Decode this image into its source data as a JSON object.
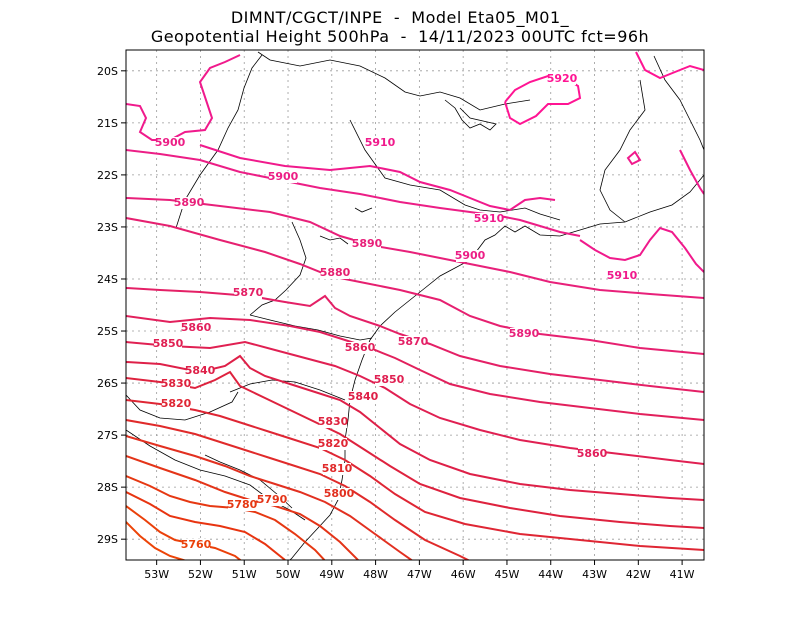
{
  "title": {
    "line1": "DIMNT/CGCT/INPE  -  Model Eta05_M01_",
    "line2": "Geopotential Height 500hPa  -  14/11/2023 00UTC fct=96h"
  },
  "map": {
    "lon_range": [
      -53.7,
      -40.5
    ],
    "lat_range": [
      -29.4,
      -19.6
    ],
    "lon_ticks": [
      "53W",
      "52W",
      "51W",
      "50W",
      "49W",
      "48W",
      "47W",
      "46W",
      "45W",
      "44W",
      "43W",
      "42W",
      "41W"
    ],
    "lat_ticks": [
      "20S",
      "21S",
      "22S",
      "23S",
      "24S",
      "25S",
      "26S",
      "27S",
      "28S",
      "29S"
    ],
    "grid": true,
    "coastline_color": "#000000"
  },
  "contours": [
    {
      "value": "5920",
      "color": "#ff1493"
    },
    {
      "value": "5910",
      "color": "#f01a8c"
    },
    {
      "value": "5900",
      "color": "#ec1e86"
    },
    {
      "value": "5890",
      "color": "#e8207a"
    },
    {
      "value": "5880",
      "color": "#e62070"
    },
    {
      "value": "5870",
      "color": "#e42066"
    },
    {
      "value": "5860",
      "color": "#e2205c"
    },
    {
      "value": "5850",
      "color": "#e02052"
    },
    {
      "value": "5840",
      "color": "#de2048"
    },
    {
      "value": "5830",
      "color": "#de223e"
    },
    {
      "value": "5820",
      "color": "#df2634"
    },
    {
      "value": "5810",
      "color": "#e02a2a"
    },
    {
      "value": "5800",
      "color": "#e23020"
    },
    {
      "value": "5790",
      "color": "#e43418"
    },
    {
      "value": "5780",
      "color": "#e63812"
    },
    {
      "value": "5760",
      "color": "#ea400a"
    }
  ],
  "labels": [
    {
      "text": "5920",
      "color": "#ff1493"
    },
    {
      "text": "5910",
      "color": "#f01a8c"
    },
    {
      "text": "5910",
      "color": "#f01a8c"
    },
    {
      "text": "5910",
      "color": "#f01a8c"
    },
    {
      "text": "5900",
      "color": "#ec1e86"
    },
    {
      "text": "5900",
      "color": "#ec1e86"
    },
    {
      "text": "5900",
      "color": "#ec1e86"
    },
    {
      "text": "5890",
      "color": "#e8207a"
    },
    {
      "text": "5890",
      "color": "#e8207a"
    },
    {
      "text": "5890",
      "color": "#e8207a"
    },
    {
      "text": "5880",
      "color": "#e62070"
    },
    {
      "text": "5870",
      "color": "#e42066"
    },
    {
      "text": "5870",
      "color": "#e42066"
    },
    {
      "text": "5860",
      "color": "#e2205c"
    },
    {
      "text": "5860",
      "color": "#e2205c"
    },
    {
      "text": "5860",
      "color": "#e2205c"
    },
    {
      "text": "5850",
      "color": "#e02052"
    },
    {
      "text": "5850",
      "color": "#e02052"
    },
    {
      "text": "5840",
      "color": "#de2048"
    },
    {
      "text": "5840",
      "color": "#de2048"
    },
    {
      "text": "5830",
      "color": "#de223e"
    },
    {
      "text": "5830",
      "color": "#de223e"
    },
    {
      "text": "5820",
      "color": "#df2634"
    },
    {
      "text": "5820",
      "color": "#df2634"
    },
    {
      "text": "5810",
      "color": "#e02a2a"
    },
    {
      "text": "5800",
      "color": "#e23020"
    },
    {
      "text": "5790",
      "color": "#e43418"
    },
    {
      "text": "5780",
      "color": "#e63812"
    },
    {
      "text": "5760",
      "color": "#ea400a"
    }
  ]
}
